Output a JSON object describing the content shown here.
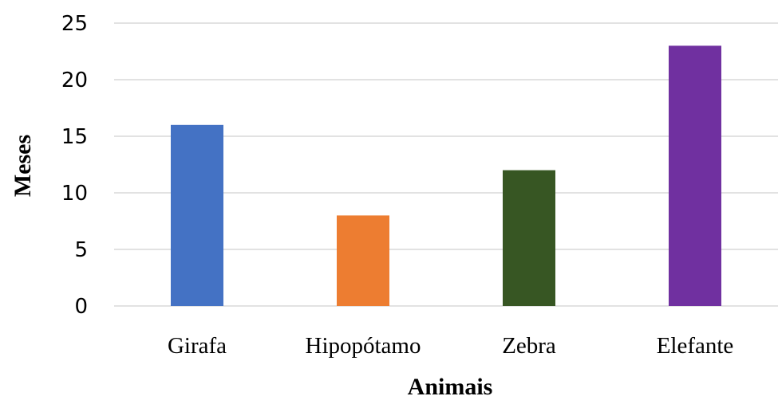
{
  "chart_data": {
    "type": "bar",
    "categories": [
      "Girafa",
      "Hipopótamo",
      "Zebra",
      "Elefante"
    ],
    "values": [
      16,
      8,
      12,
      23
    ],
    "colors": [
      "#4472c4",
      "#ed7d31",
      "#375623",
      "#7030a0"
    ],
    "title": "",
    "xlabel": "Animais",
    "ylabel": "Meses",
    "ylim": [
      0,
      25
    ],
    "yticks": [
      0,
      5,
      10,
      15,
      20,
      25
    ],
    "grid": true,
    "legend": "none"
  }
}
